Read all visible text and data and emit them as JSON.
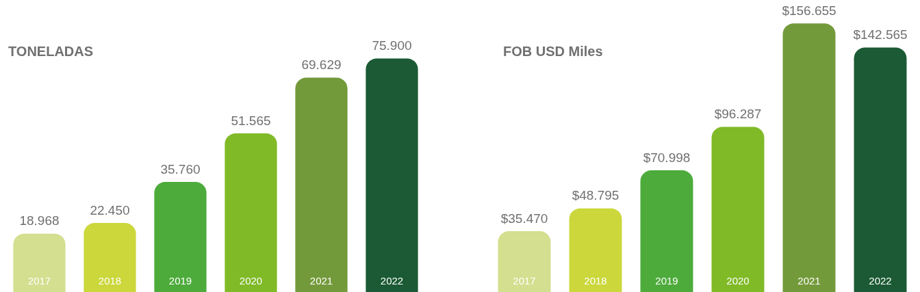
{
  "chart_data": [
    {
      "type": "bar",
      "title": "TONELADAS",
      "categories": [
        "2017",
        "2018",
        "2019",
        "2020",
        "2021",
        "2022"
      ],
      "values": [
        18968,
        22450,
        35760,
        51565,
        69629,
        75900
      ],
      "colors": [
        "#d4df8f",
        "#cbd73b",
        "#4dab3b",
        "#80ba27",
        "#739a3a",
        "#1b5a34"
      ],
      "value_labels": [
        "18.968",
        "22.450",
        "35.760",
        "51.565",
        "69.629",
        "75.900"
      ],
      "grid": false,
      "legend": false
    },
    {
      "type": "bar",
      "title": "FOB USD Miles",
      "categories": [
        "2017",
        "2018",
        "2019",
        "2020",
        "2021",
        "2022"
      ],
      "values": [
        35470,
        48795,
        70998,
        96287,
        156655,
        142565
      ],
      "colors": [
        "#d4df8f",
        "#cbd73b",
        "#4dab3b",
        "#80ba27",
        "#739a3a",
        "#1b5a34"
      ],
      "value_labels": [
        "$35.470",
        "$48.795",
        "$70.998",
        "$96.287",
        "$156.655",
        "$142.565"
      ],
      "grid": false,
      "legend": false
    }
  ]
}
